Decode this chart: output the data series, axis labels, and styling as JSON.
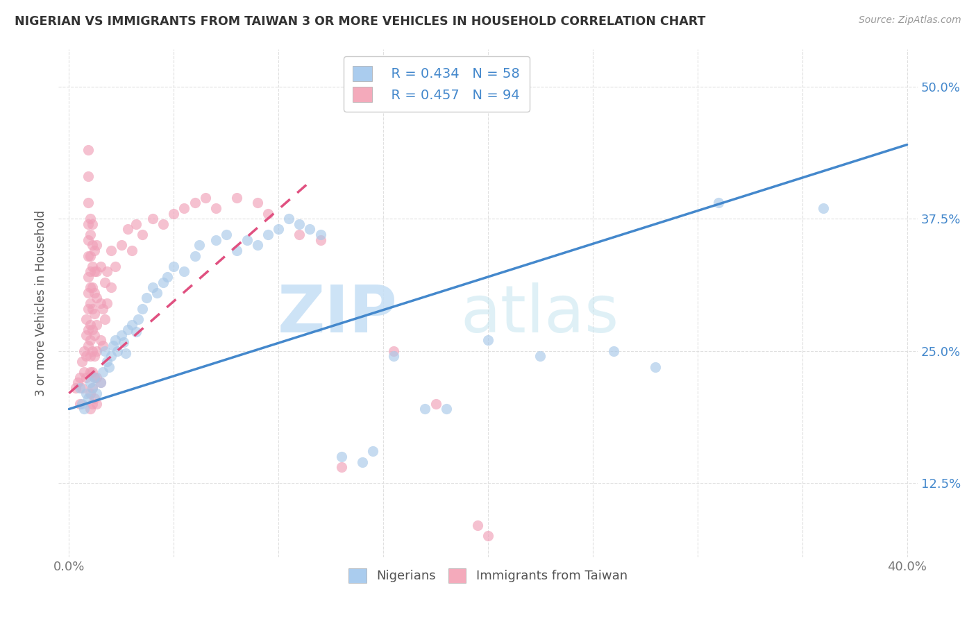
{
  "title": "NIGERIAN VS IMMIGRANTS FROM TAIWAN 3 OR MORE VEHICLES IN HOUSEHOLD CORRELATION CHART",
  "source": "Source: ZipAtlas.com",
  "ylabel": "3 or more Vehicles in Household",
  "xlim": [
    -0.005,
    0.405
  ],
  "ylim": [
    0.055,
    0.535
  ],
  "xtick_positions": [
    0.0,
    0.05,
    0.1,
    0.15,
    0.2,
    0.25,
    0.3,
    0.35,
    0.4
  ],
  "xticklabels": [
    "0.0%",
    "",
    "",
    "",
    "",
    "",
    "",
    "",
    "40.0%"
  ],
  "ytick_positions": [
    0.125,
    0.25,
    0.375,
    0.5
  ],
  "yticklabels": [
    "12.5%",
    "25.0%",
    "37.5%",
    "50.0%"
  ],
  "legend_r1": "R = 0.434",
  "legend_n1": "N = 58",
  "legend_r2": "R = 0.457",
  "legend_n2": "N = 94",
  "blue_scatter_color": "#a8c8e8",
  "pink_scatter_color": "#f0a0b8",
  "blue_line_color": "#4488cc",
  "pink_line_color": "#e05080",
  "blue_legend_color": "#aaccee",
  "pink_legend_color": "#f4aabb",
  "text_color": "#4488cc",
  "title_color": "#333333",
  "source_color": "#999999",
  "grid_color": "#e0e0e0",
  "ylabel_color": "#555555",
  "xtick_color": "#777777",
  "blue_line": {
    "x0": 0.0,
    "x1": 0.4,
    "y0": 0.195,
    "y1": 0.445
  },
  "pink_line": {
    "x0": 0.0,
    "x1": 0.115,
    "y0": 0.21,
    "y1": 0.41
  },
  "blue_pts": [
    [
      0.005,
      0.215
    ],
    [
      0.006,
      0.2
    ],
    [
      0.007,
      0.195
    ],
    [
      0.008,
      0.21
    ],
    [
      0.009,
      0.205
    ],
    [
      0.01,
      0.22
    ],
    [
      0.011,
      0.215
    ],
    [
      0.012,
      0.225
    ],
    [
      0.013,
      0.21
    ],
    [
      0.015,
      0.22
    ],
    [
      0.016,
      0.23
    ],
    [
      0.017,
      0.25
    ],
    [
      0.018,
      0.24
    ],
    [
      0.019,
      0.235
    ],
    [
      0.02,
      0.245
    ],
    [
      0.021,
      0.255
    ],
    [
      0.022,
      0.26
    ],
    [
      0.023,
      0.25
    ],
    [
      0.025,
      0.265
    ],
    [
      0.026,
      0.258
    ],
    [
      0.027,
      0.248
    ],
    [
      0.028,
      0.27
    ],
    [
      0.03,
      0.275
    ],
    [
      0.032,
      0.268
    ],
    [
      0.033,
      0.28
    ],
    [
      0.035,
      0.29
    ],
    [
      0.037,
      0.3
    ],
    [
      0.04,
      0.31
    ],
    [
      0.042,
      0.305
    ],
    [
      0.045,
      0.315
    ],
    [
      0.047,
      0.32
    ],
    [
      0.05,
      0.33
    ],
    [
      0.055,
      0.325
    ],
    [
      0.06,
      0.34
    ],
    [
      0.062,
      0.35
    ],
    [
      0.07,
      0.355
    ],
    [
      0.075,
      0.36
    ],
    [
      0.08,
      0.345
    ],
    [
      0.085,
      0.355
    ],
    [
      0.09,
      0.35
    ],
    [
      0.095,
      0.36
    ],
    [
      0.1,
      0.365
    ],
    [
      0.105,
      0.375
    ],
    [
      0.11,
      0.37
    ],
    [
      0.115,
      0.365
    ],
    [
      0.12,
      0.36
    ],
    [
      0.13,
      0.15
    ],
    [
      0.14,
      0.145
    ],
    [
      0.145,
      0.155
    ],
    [
      0.155,
      0.245
    ],
    [
      0.17,
      0.195
    ],
    [
      0.18,
      0.195
    ],
    [
      0.2,
      0.26
    ],
    [
      0.225,
      0.245
    ],
    [
      0.26,
      0.25
    ],
    [
      0.28,
      0.235
    ],
    [
      0.31,
      0.39
    ],
    [
      0.36,
      0.385
    ]
  ],
  "pink_pts": [
    [
      0.003,
      0.215
    ],
    [
      0.004,
      0.22
    ],
    [
      0.005,
      0.2
    ],
    [
      0.005,
      0.225
    ],
    [
      0.006,
      0.215
    ],
    [
      0.006,
      0.24
    ],
    [
      0.007,
      0.23
    ],
    [
      0.007,
      0.25
    ],
    [
      0.008,
      0.225
    ],
    [
      0.008,
      0.245
    ],
    [
      0.008,
      0.265
    ],
    [
      0.008,
      0.28
    ],
    [
      0.009,
      0.255
    ],
    [
      0.009,
      0.27
    ],
    [
      0.009,
      0.29
    ],
    [
      0.009,
      0.305
    ],
    [
      0.009,
      0.32
    ],
    [
      0.009,
      0.34
    ],
    [
      0.009,
      0.355
    ],
    [
      0.009,
      0.37
    ],
    [
      0.009,
      0.39
    ],
    [
      0.009,
      0.415
    ],
    [
      0.009,
      0.44
    ],
    [
      0.01,
      0.195
    ],
    [
      0.01,
      0.21
    ],
    [
      0.01,
      0.23
    ],
    [
      0.01,
      0.245
    ],
    [
      0.01,
      0.26
    ],
    [
      0.01,
      0.275
    ],
    [
      0.01,
      0.295
    ],
    [
      0.01,
      0.31
    ],
    [
      0.01,
      0.325
    ],
    [
      0.01,
      0.34
    ],
    [
      0.01,
      0.36
    ],
    [
      0.01,
      0.375
    ],
    [
      0.011,
      0.2
    ],
    [
      0.011,
      0.215
    ],
    [
      0.011,
      0.23
    ],
    [
      0.011,
      0.25
    ],
    [
      0.011,
      0.27
    ],
    [
      0.011,
      0.29
    ],
    [
      0.011,
      0.31
    ],
    [
      0.011,
      0.33
    ],
    [
      0.011,
      0.35
    ],
    [
      0.011,
      0.37
    ],
    [
      0.012,
      0.205
    ],
    [
      0.012,
      0.225
    ],
    [
      0.012,
      0.245
    ],
    [
      0.012,
      0.265
    ],
    [
      0.012,
      0.285
    ],
    [
      0.012,
      0.305
    ],
    [
      0.012,
      0.325
    ],
    [
      0.012,
      0.345
    ],
    [
      0.013,
      0.2
    ],
    [
      0.013,
      0.225
    ],
    [
      0.013,
      0.25
    ],
    [
      0.013,
      0.275
    ],
    [
      0.013,
      0.3
    ],
    [
      0.013,
      0.325
    ],
    [
      0.013,
      0.35
    ],
    [
      0.015,
      0.22
    ],
    [
      0.015,
      0.26
    ],
    [
      0.015,
      0.295
    ],
    [
      0.015,
      0.33
    ],
    [
      0.016,
      0.255
    ],
    [
      0.016,
      0.29
    ],
    [
      0.017,
      0.28
    ],
    [
      0.017,
      0.315
    ],
    [
      0.018,
      0.295
    ],
    [
      0.018,
      0.325
    ],
    [
      0.02,
      0.31
    ],
    [
      0.02,
      0.345
    ],
    [
      0.022,
      0.33
    ],
    [
      0.025,
      0.35
    ],
    [
      0.028,
      0.365
    ],
    [
      0.03,
      0.345
    ],
    [
      0.032,
      0.37
    ],
    [
      0.035,
      0.36
    ],
    [
      0.04,
      0.375
    ],
    [
      0.045,
      0.37
    ],
    [
      0.05,
      0.38
    ],
    [
      0.055,
      0.385
    ],
    [
      0.06,
      0.39
    ],
    [
      0.065,
      0.395
    ],
    [
      0.07,
      0.385
    ],
    [
      0.08,
      0.395
    ],
    [
      0.09,
      0.39
    ],
    [
      0.095,
      0.38
    ],
    [
      0.11,
      0.36
    ],
    [
      0.12,
      0.355
    ],
    [
      0.13,
      0.14
    ],
    [
      0.155,
      0.25
    ],
    [
      0.175,
      0.2
    ],
    [
      0.195,
      0.085
    ],
    [
      0.2,
      0.075
    ]
  ],
  "watermark_zip_color": "#c5dff5",
  "watermark_atlas_color": "#c5e5f0"
}
